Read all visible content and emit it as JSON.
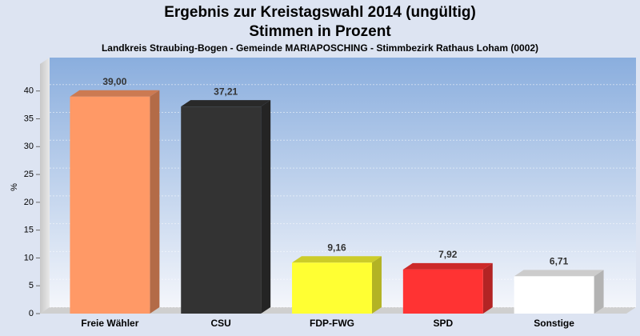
{
  "chart_data": {
    "type": "bar",
    "title": "Ergebnis zur Kreistagswahl 2014 (ungültig)",
    "subtitle": "Stimmen in Prozent",
    "caption": "Landkreis Straubing-Bogen - Gemeinde MARIAPOSCHING - Stimmbezirk Rathaus Loham (0002)",
    "y_label": "%",
    "categories": [
      "Freie Wähler",
      "CSU",
      "FDP-FWG",
      "SPD",
      "Sonstige"
    ],
    "values": [
      39.0,
      37.21,
      9.16,
      7.92,
      6.71
    ],
    "value_labels": [
      "39,00",
      "37,21",
      "9,16",
      "7,92",
      "6,71"
    ],
    "colors": [
      "#ff9966",
      "#333333",
      "#ffff33",
      "#ff3333",
      "#ffffff"
    ],
    "ylim": [
      0,
      46
    ],
    "yticks": [
      0,
      5,
      10,
      15,
      20,
      25,
      30,
      35,
      40
    ],
    "grid": true
  }
}
